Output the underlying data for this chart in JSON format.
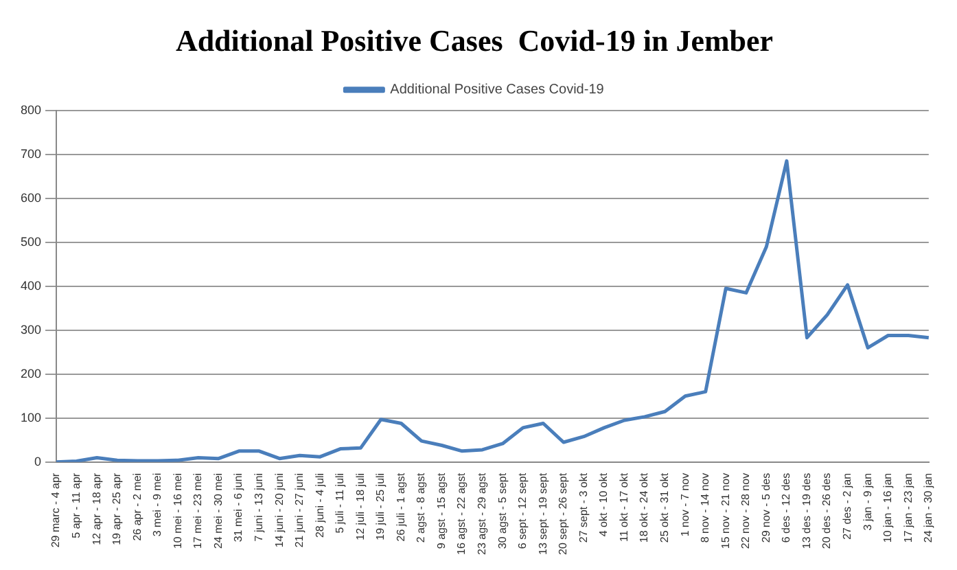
{
  "chart_data": {
    "type": "line",
    "title": "Additional Positive Cases  Covid-19 in Jember",
    "categories": [
      "29 marc - 4 apr",
      "5 apr - 11 apr",
      "12 apr - 18 apr",
      "19 apr - 25 apr",
      "26 apr - 2 mei",
      "3 mei - 9 mei",
      "10 mei - 16 mei",
      "17 mei - 23 mei",
      "24 mei - 30 mei",
      "31 mei - 6 juni",
      "7 juni - 13 juni",
      "14 juni - 20 juni",
      "21 juni - 27 juni",
      "28 juni - 4 juli",
      "5 juli - 11 juli",
      "12 juli - 18 juli",
      "19 juli - 25 juli",
      "26 juli - 1 agst",
      "2 agst - 8 agst",
      "9 agst - 15 agst",
      "16 agst - 22 agst",
      "23 agst - 29 agst",
      "30 agst - 5 sept",
      "6 sept - 12 sept",
      "13 sept - 19 sept",
      "20 sept - 26 sept",
      "27 sept - 3 okt",
      "4 okt - 10 okt",
      "11 okt - 17 okt",
      "18 okt - 24 okt",
      "25 okt - 31 okt",
      "1 nov - 7 nov",
      "8 nov - 14 nov",
      "15 nov - 21 nov",
      "22 nov - 28 nov",
      "29 nov - 5 des",
      "6 des - 12 des",
      "13 des - 19 des",
      "20 des - 26 des",
      "27 des - 2 jan",
      "3 jan - 9 jan",
      "10 jan - 16 jan",
      "17 jan - 23 jan",
      "24 jan - 30 jan"
    ],
    "series": [
      {
        "name": "Additional Positive Cases Covid-19",
        "color": "#4a7ebb",
        "values": [
          0,
          2,
          10,
          4,
          3,
          3,
          4,
          10,
          8,
          25,
          25,
          8,
          15,
          12,
          30,
          32,
          97,
          88,
          48,
          38,
          25,
          28,
          42,
          78,
          88,
          45,
          58,
          78,
          95,
          103,
          115,
          150,
          160,
          395,
          385,
          490,
          685,
          283,
          335,
          403,
          260,
          288,
          288,
          283
        ]
      }
    ],
    "ylim": [
      0,
      800
    ],
    "yticks": [
      0,
      100,
      200,
      300,
      400,
      500,
      600,
      700,
      800
    ],
    "grid": "y",
    "legend": "top",
    "marker": "none",
    "line_style": "solid"
  }
}
